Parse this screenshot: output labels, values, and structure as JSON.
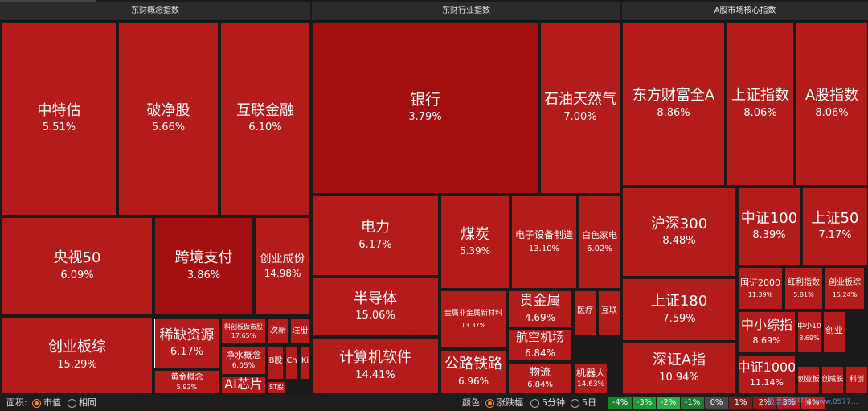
{
  "panels": [
    {
      "title": "东财概念指数"
    },
    {
      "title": "东财行业指数"
    },
    {
      "title": "A股市场核心指数"
    }
  ],
  "tiles": [
    {
      "name": "中特估",
      "pct": "5.51%"
    },
    {
      "name": "破净股",
      "pct": "5.66%"
    },
    {
      "name": "互联金融",
      "pct": "6.10%"
    },
    {
      "name": "央视50",
      "pct": "6.09%"
    },
    {
      "name": "跨境支付",
      "pct": "3.86%"
    },
    {
      "name": "创业成份",
      "pct": "14.98%"
    },
    {
      "name": "创业板综",
      "pct": "15.29%"
    },
    {
      "name": "稀缺资源",
      "pct": "6.17%"
    },
    {
      "name": "科创板做市股",
      "pct": "17.65%"
    },
    {
      "name": "次新",
      "pct": ""
    },
    {
      "name": "注册",
      "pct": ""
    },
    {
      "name": "黄金概念",
      "pct": "5.92%"
    },
    {
      "name": "净水概念",
      "pct": "6.05%"
    },
    {
      "name": "B股",
      "pct": ""
    },
    {
      "name": "Ch",
      "pct": ""
    },
    {
      "name": "Ki",
      "pct": ""
    },
    {
      "name": "AI芯片",
      "pct": ""
    },
    {
      "name": "ST股",
      "pct": ""
    },
    {
      "name": "银行",
      "pct": "3.79%"
    },
    {
      "name": "石油天然气",
      "pct": "7.00%"
    },
    {
      "name": "电力",
      "pct": "6.17%"
    },
    {
      "name": "煤炭",
      "pct": "5.39%"
    },
    {
      "name": "电子设备制造",
      "pct": "13.10%"
    },
    {
      "name": "白色家电",
      "pct": "6.02%"
    },
    {
      "name": "半导体",
      "pct": "15.06%"
    },
    {
      "name": "金属非金属新材料",
      "pct": "13.37%"
    },
    {
      "name": "贵金属",
      "pct": "4.69%"
    },
    {
      "name": "医疗",
      "pct": ""
    },
    {
      "name": "互联",
      "pct": ""
    },
    {
      "name": "计算机软件",
      "pct": "14.41%"
    },
    {
      "name": "航空机场",
      "pct": "6.84%"
    },
    {
      "name": "公路铁路",
      "pct": "6.96%"
    },
    {
      "name": "物流",
      "pct": "6.84%"
    },
    {
      "name": "机器人",
      "pct": "14.63%"
    },
    {
      "name": "东方财富全A",
      "pct": "8.86%"
    },
    {
      "name": "上证指数",
      "pct": "8.06%"
    },
    {
      "name": "A股指数",
      "pct": "8.06%"
    },
    {
      "name": "沪深300",
      "pct": "8.48%"
    },
    {
      "name": "中证100",
      "pct": "8.39%"
    },
    {
      "name": "上证50",
      "pct": "7.17%"
    },
    {
      "name": "国证2000",
      "pct": "11.39%"
    },
    {
      "name": "红利指数",
      "pct": "5.81%"
    },
    {
      "name": "创业板综",
      "pct": "15.24%"
    },
    {
      "name": "上证180",
      "pct": "7.59%"
    },
    {
      "name": "中小综指",
      "pct": "8.69%"
    },
    {
      "name": "中小10",
      "pct": "8.69%"
    },
    {
      "name": "创业",
      "pct": ""
    },
    {
      "name": "深证A指",
      "pct": "10.94%"
    },
    {
      "name": "中证1000",
      "pct": "11.14%"
    },
    {
      "name": "创业板",
      "pct": ""
    },
    {
      "name": "创成长",
      "pct": ""
    },
    {
      "name": "科创",
      "pct": ""
    }
  ],
  "bottom": {
    "area_label": "面积:",
    "area_options": [
      "市值",
      "相同"
    ],
    "area_selected": "市值",
    "color_label": "颜色:",
    "color_options": [
      "涨跌幅",
      "5分钟",
      "5日"
    ],
    "color_selected": "涨跌幅",
    "legend": [
      {
        "label": "-4%",
        "color": "#12852f"
      },
      {
        "label": "-3%",
        "color": "#1c9a3a"
      },
      {
        "label": "-2%",
        "color": "#2aad49"
      },
      {
        "label": "-1%",
        "color": "#1f7a36"
      },
      {
        "label": "0%",
        "color": "#4a4a4a"
      },
      {
        "label": "1%",
        "color": "#7a1d1d"
      },
      {
        "label": "2%",
        "color": "#9a1616"
      },
      {
        "label": "3%",
        "color": "#b21a1a"
      },
      {
        "label": "4%",
        "color": "#c81e1e"
      }
    ]
  },
  "colors": {
    "tile_red": "#b41b1b",
    "tile_dark_red": "#a30f0f",
    "background": "#1a1a1a",
    "header_bg": "#2b2b2b",
    "accent_orange": "#f08a24"
  },
  "watermark": "股票配资平台 www.0577..."
}
